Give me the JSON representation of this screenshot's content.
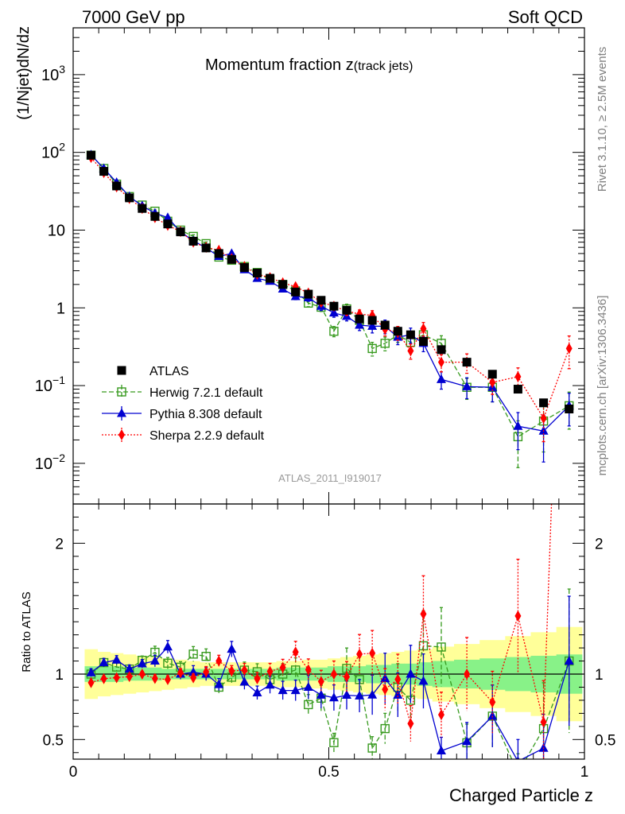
{
  "header": {
    "left": "7000 GeV pp",
    "right": "Soft QCD"
  },
  "side_labels": {
    "upper": "Rivet 3.1.10, ≥ 2.5M events",
    "lower": "mcplots.cern.ch [arXiv:1306.3436]"
  },
  "analysis_id": "ATLAS_2011_I919017",
  "chart_data": {
    "type": "scatter",
    "title_main": "Momentum fraction z",
    "title_sub": "(track jets)",
    "xlabel": "Charged Particle z",
    "ylabel": "(1/Njet)dN/dz",
    "ratio_ylabel": "Ratio to ATLAS",
    "xlim": [
      0,
      1
    ],
    "ylim_log": [
      0.003,
      4000
    ],
    "ratio_ylim": [
      0.35,
      2.3
    ],
    "x_ticks": [
      "0",
      "0.5",
      "1"
    ],
    "y_ticks": [
      {
        "v": 0.01,
        "base": "10",
        "exp": "−2"
      },
      {
        "v": 0.1,
        "base": "10",
        "exp": "−1"
      },
      {
        "v": 1,
        "base": "1",
        "exp": ""
      },
      {
        "v": 10,
        "base": "10",
        "exp": ""
      },
      {
        "v": 100,
        "base": "10",
        "exp": "2"
      },
      {
        "v": 1000,
        "base": "10",
        "exp": "3"
      }
    ],
    "ratio_ticks": [
      {
        "v": 0.5,
        "label": "0.5"
      },
      {
        "v": 1,
        "label": "1"
      },
      {
        "v": 2,
        "label": "2"
      }
    ],
    "x": [
      0.035,
      0.06,
      0.085,
      0.11,
      0.135,
      0.16,
      0.185,
      0.21,
      0.235,
      0.26,
      0.285,
      0.31,
      0.335,
      0.36,
      0.385,
      0.41,
      0.435,
      0.46,
      0.485,
      0.51,
      0.535,
      0.56,
      0.585,
      0.61,
      0.635,
      0.66,
      0.685,
      0.72,
      0.77,
      0.82,
      0.87,
      0.92,
      0.97
    ],
    "ratio_band": {
      "green": [
        0.06,
        0.06,
        0.06,
        0.05,
        0.05,
        0.05,
        0.04,
        0.04,
        0.04,
        0.04,
        0.04,
        0.04,
        0.04,
        0.04,
        0.04,
        0.05,
        0.05,
        0.05,
        0.05,
        0.06,
        0.06,
        0.06,
        0.07,
        0.07,
        0.08,
        0.08,
        0.09,
        0.1,
        0.11,
        0.12,
        0.13,
        0.14,
        0.15
      ],
      "yellow": [
        0.19,
        0.17,
        0.16,
        0.15,
        0.14,
        0.13,
        0.12,
        0.11,
        0.1,
        0.09,
        0.09,
        0.09,
        0.09,
        0.09,
        0.09,
        0.1,
        0.1,
        0.11,
        0.11,
        0.12,
        0.13,
        0.14,
        0.15,
        0.16,
        0.17,
        0.18,
        0.19,
        0.21,
        0.23,
        0.26,
        0.29,
        0.32,
        0.36
      ]
    },
    "series": [
      {
        "name": "ATLAS",
        "color": "#000000",
        "marker": "square-filled",
        "values": [
          92,
          57,
          37,
          26,
          19,
          15,
          12,
          9.5,
          7.2,
          5.9,
          5.0,
          4.2,
          3.3,
          2.8,
          2.4,
          2.0,
          1.6,
          1.5,
          1.25,
          1.05,
          0.93,
          0.72,
          0.69,
          0.6,
          0.5,
          0.45,
          0.37,
          0.29,
          0.2,
          0.14,
          0.09,
          0.06,
          0.05
        ]
      },
      {
        "name": "Herwig 7.2.1 default",
        "color": "#379a1e",
        "marker": "square-open",
        "line": "dashed",
        "values": [
          92,
          62,
          39,
          27,
          21,
          17.5,
          13,
          10,
          8.3,
          6.7,
          4.5,
          4.1,
          3.4,
          2.85,
          2.3,
          2.0,
          1.65,
          1.15,
          1.02,
          0.5,
          0.97,
          0.69,
          0.3,
          0.35,
          0.45,
          0.36,
          0.45,
          0.35,
          0.095,
          0.095,
          0.022,
          0.035,
          0.055
        ],
        "errors": [
          0.03,
          0.03,
          0.03,
          0.03,
          0.03,
          0.04,
          0.04,
          0.04,
          0.05,
          0.05,
          0.05,
          0.05,
          0.06,
          0.06,
          0.07,
          0.08,
          0.09,
          0.1,
          0.12,
          0.15,
          0.15,
          0.18,
          0.2,
          0.2,
          0.2,
          0.22,
          0.22,
          0.25,
          0.3,
          0.35,
          0.6,
          0.6,
          0.5
        ]
      },
      {
        "name": "Pythia 8.308 default",
        "color": "#0000d0",
        "marker": "triangle",
        "line": "solid",
        "values": [
          93,
          62,
          41,
          27,
          20.5,
          16.5,
          14.5,
          9.5,
          7.3,
          5.9,
          4.6,
          5.0,
          3.1,
          2.4,
          2.2,
          1.75,
          1.4,
          1.35,
          1.05,
          0.86,
          0.78,
          0.6,
          0.58,
          0.58,
          0.42,
          0.45,
          0.35,
          0.12,
          0.097,
          0.095,
          0.03,
          0.026,
          0.055
        ],
        "errors": [
          0.03,
          0.03,
          0.03,
          0.03,
          0.03,
          0.04,
          0.04,
          0.04,
          0.05,
          0.05,
          0.05,
          0.05,
          0.06,
          0.06,
          0.07,
          0.08,
          0.09,
          0.1,
          0.12,
          0.12,
          0.13,
          0.15,
          0.18,
          0.2,
          0.2,
          0.22,
          0.22,
          0.25,
          0.3,
          0.35,
          0.5,
          0.6,
          0.45
        ]
      },
      {
        "name": "Sherpa 2.2.9 default",
        "color": "#ff0000",
        "marker": "diamond",
        "line": "dotted",
        "values": [
          86,
          55,
          36,
          25.5,
          19,
          14.5,
          11.5,
          9.6,
          7.0,
          6.0,
          5.5,
          4.3,
          3.4,
          2.7,
          2.45,
          2.1,
          1.87,
          1.55,
          1.18,
          1.05,
          0.91,
          0.83,
          0.8,
          0.53,
          0.48,
          0.28,
          0.54,
          0.2,
          0.2,
          0.11,
          0.13,
          0.038,
          0.3
        ],
        "errors": [
          0.02,
          0.02,
          0.02,
          0.02,
          0.02,
          0.03,
          0.03,
          0.03,
          0.03,
          0.04,
          0.04,
          0.04,
          0.05,
          0.05,
          0.06,
          0.06,
          0.07,
          0.08,
          0.09,
          0.1,
          0.12,
          0.13,
          0.15,
          0.18,
          0.2,
          0.22,
          0.2,
          0.25,
          0.28,
          0.3,
          0.3,
          0.5,
          0.45
        ]
      }
    ]
  }
}
